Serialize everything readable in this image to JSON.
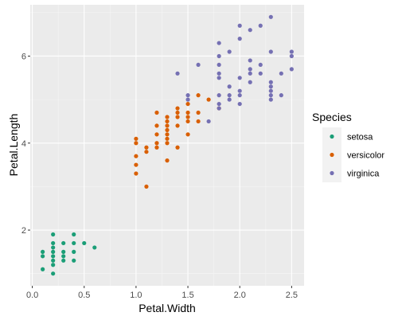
{
  "chart_data": {
    "type": "scatter",
    "xlabel": "Petal.Width",
    "ylabel": "Petal.Length",
    "xlim": [
      -0.02,
      2.62
    ],
    "ylim": [
      0.72,
      7.18
    ],
    "x_ticks": [
      0.0,
      0.5,
      1.0,
      1.5,
      2.0,
      2.5
    ],
    "x_tick_labels": [
      "0.0",
      "0.5",
      "1.0",
      "1.5",
      "2.0",
      "2.5"
    ],
    "y_ticks": [
      2,
      4,
      6
    ],
    "y_tick_labels": [
      "2",
      "4",
      "6"
    ],
    "grid": true,
    "legend": {
      "title": "Species",
      "position": "right"
    },
    "series": [
      {
        "name": "setosa",
        "color": "#1b9e77",
        "points": [
          [
            0.1,
            1.4
          ],
          [
            0.1,
            1.5
          ],
          [
            0.1,
            1.1
          ],
          [
            0.2,
            1.0
          ],
          [
            0.2,
            1.2
          ],
          [
            0.2,
            1.3
          ],
          [
            0.2,
            1.4
          ],
          [
            0.2,
            1.5
          ],
          [
            0.2,
            1.6
          ],
          [
            0.2,
            1.7
          ],
          [
            0.2,
            1.9
          ],
          [
            0.3,
            1.3
          ],
          [
            0.3,
            1.4
          ],
          [
            0.3,
            1.5
          ],
          [
            0.3,
            1.7
          ],
          [
            0.4,
            1.3
          ],
          [
            0.4,
            1.5
          ],
          [
            0.4,
            1.7
          ],
          [
            0.4,
            1.9
          ],
          [
            0.5,
            1.7
          ],
          [
            0.6,
            1.6
          ]
        ]
      },
      {
        "name": "versicolor",
        "color": "#d95f02",
        "points": [
          [
            1.0,
            3.3
          ],
          [
            1.0,
            3.5
          ],
          [
            1.0,
            3.7
          ],
          [
            1.0,
            4.0
          ],
          [
            1.0,
            4.1
          ],
          [
            1.1,
            3.0
          ],
          [
            1.1,
            3.8
          ],
          [
            1.1,
            3.9
          ],
          [
            1.2,
            3.9
          ],
          [
            1.2,
            4.0
          ],
          [
            1.2,
            4.2
          ],
          [
            1.2,
            4.4
          ],
          [
            1.2,
            4.7
          ],
          [
            1.3,
            3.6
          ],
          [
            1.3,
            4.0
          ],
          [
            1.3,
            4.1
          ],
          [
            1.3,
            4.2
          ],
          [
            1.3,
            4.3
          ],
          [
            1.3,
            4.4
          ],
          [
            1.3,
            4.5
          ],
          [
            1.3,
            4.6
          ],
          [
            1.4,
            3.9
          ],
          [
            1.4,
            4.4
          ],
          [
            1.4,
            4.6
          ],
          [
            1.4,
            4.7
          ],
          [
            1.4,
            4.8
          ],
          [
            1.5,
            4.2
          ],
          [
            1.5,
            4.5
          ],
          [
            1.5,
            4.6
          ],
          [
            1.5,
            4.7
          ],
          [
            1.5,
            4.9
          ],
          [
            1.6,
            4.5
          ],
          [
            1.6,
            4.7
          ],
          [
            1.6,
            5.1
          ],
          [
            1.7,
            5.0
          ],
          [
            1.8,
            4.8
          ]
        ]
      },
      {
        "name": "virginica",
        "color": "#7570b3",
        "points": [
          [
            1.4,
            5.6
          ],
          [
            1.5,
            5.0
          ],
          [
            1.5,
            5.1
          ],
          [
            1.6,
            5.8
          ],
          [
            1.7,
            4.5
          ],
          [
            1.8,
            4.8
          ],
          [
            1.8,
            4.9
          ],
          [
            1.8,
            5.1
          ],
          [
            1.8,
            5.5
          ],
          [
            1.8,
            5.6
          ],
          [
            1.8,
            5.8
          ],
          [
            1.8,
            6.0
          ],
          [
            1.8,
            6.3
          ],
          [
            1.9,
            5.0
          ],
          [
            1.9,
            5.1
          ],
          [
            1.9,
            5.3
          ],
          [
            1.9,
            6.1
          ],
          [
            2.0,
            4.9
          ],
          [
            2.0,
            5.1
          ],
          [
            2.0,
            5.2
          ],
          [
            2.0,
            5.5
          ],
          [
            2.0,
            6.4
          ],
          [
            2.0,
            6.7
          ],
          [
            2.1,
            5.4
          ],
          [
            2.1,
            5.6
          ],
          [
            2.1,
            5.7
          ],
          [
            2.1,
            5.9
          ],
          [
            2.1,
            6.6
          ],
          [
            2.2,
            5.6
          ],
          [
            2.2,
            5.8
          ],
          [
            2.2,
            6.7
          ],
          [
            2.3,
            5.0
          ],
          [
            2.3,
            5.1
          ],
          [
            2.3,
            5.2
          ],
          [
            2.3,
            5.3
          ],
          [
            2.3,
            5.4
          ],
          [
            2.3,
            6.1
          ],
          [
            2.3,
            6.9
          ],
          [
            2.4,
            5.1
          ],
          [
            2.4,
            5.6
          ],
          [
            2.5,
            5.7
          ],
          [
            2.5,
            6.0
          ],
          [
            2.5,
            6.1
          ]
        ]
      }
    ]
  }
}
